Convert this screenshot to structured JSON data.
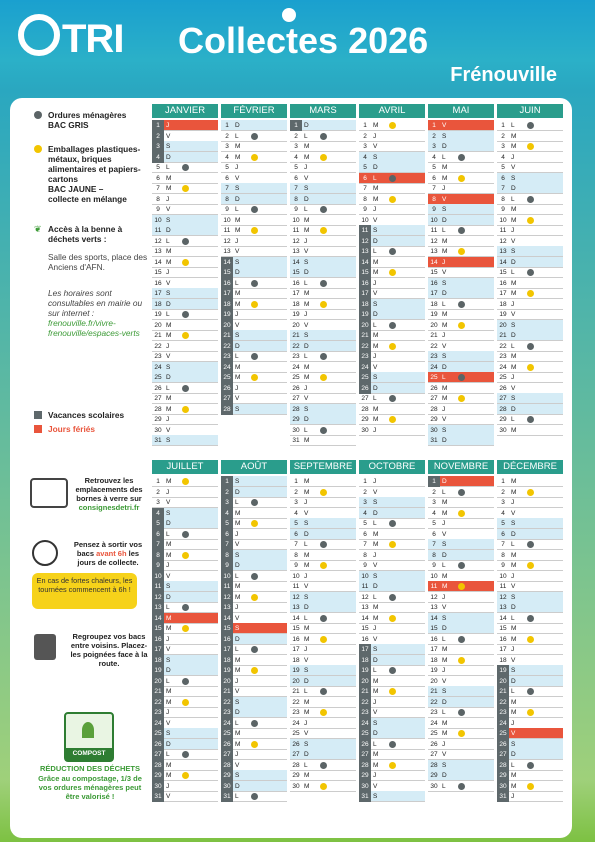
{
  "header": {
    "logo": "TRI",
    "title": "Collectes 2026",
    "subtitle": "Frénouville"
  },
  "legend": {
    "om_title": "Ordures ménagères",
    "om_sub": "BAC GRIS",
    "emb_title": "Emballages plastiques-métaux, briques alimentaires et papiers-cartons",
    "emb_sub": "BAC JAUNE –",
    "emb_mix": "collecte en mélange",
    "benne_title": "Accès à la benne à déchets verts :",
    "benne_place": "Salle des sports, place des Anciens d'AFN.",
    "horaires": "Les horaires sont consultables en mairie ou sur internet :",
    "url": "frenouville.fr/vivre-frenouville/espaces-verts",
    "vac": "Vacances scolaires",
    "feries": "Jours fériés"
  },
  "notes": {
    "bornes": "Retrouvez les emplacements des bornes à verre sur",
    "bornes_url": "consignesdetri.fr",
    "sortir1": "Pensez à sortir vos bacs",
    "sortir_hl": "avant 6h",
    "sortir2": "les jours de collecte.",
    "chaleur": "En cas de fortes chaleurs, les tournées commencent à 6h !",
    "regroupez": "Regroupez vos bacs entre voisins. Placez-les poignées face à la route.",
    "compost_label": "COMPOST",
    "reduction_title": "RÉDUCTION DES DÉCHETS",
    "reduction_text": "Grâce au compostage, 1/3 de vos ordures ménagères peut être valorisé !"
  },
  "months_top": [
    "JANVIER",
    "FÉVRIER",
    "MARS",
    "AVRIL",
    "MAI",
    "JUIN"
  ],
  "months_bottom": [
    "JUILLET",
    "AOÛT",
    "SEPTEMBRE",
    "OCTOBRE",
    "NOVEMBRE",
    "DÉCEMBRE"
  ],
  "colors": {
    "accent": "#2a9d8c",
    "holiday": "#e9553c",
    "vacation": "#5e686b",
    "weekend": "#d5ecf6",
    "grey_bin": "#5b6466",
    "yellow_bin": "#f2c500"
  }
}
